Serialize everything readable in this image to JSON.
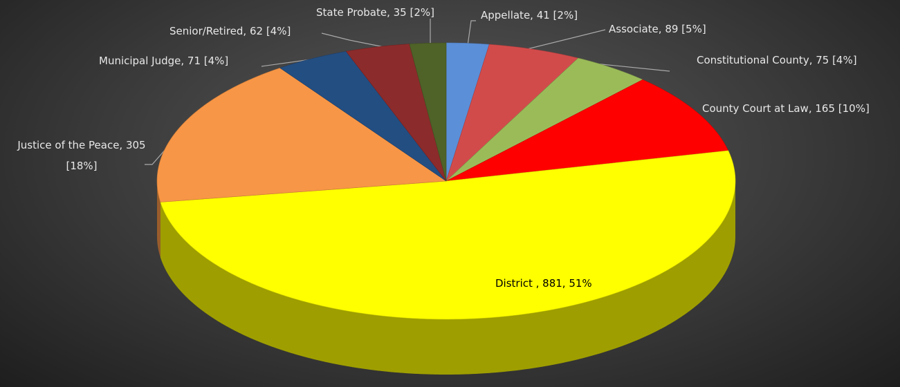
{
  "chart_data": {
    "type": "pie3d",
    "values": [
      41,
      89,
      75,
      165,
      881,
      305,
      71,
      62,
      35
    ],
    "value_labels": [
      "Appellate, 41 [2%]",
      "Associate, 89 [5%]",
      "Constitutional County, 75 [4%]",
      "County Court at Law, 165 [10%]",
      "District , 881, 51%",
      "Justice of the Peace, 305 [18%]",
      "Municipal Judge, 71 [4%]",
      "Senior/Retired, 62 [4%]",
      "State Probate, 35 [2%]"
    ],
    "colors": [
      "#5b8fd8",
      "#d24b4b",
      "#9bbb59",
      "#ff0000",
      "#ffff00",
      "#f79646",
      "#234e82",
      "#8c2b2b",
      "#4f6228"
    ]
  }
}
